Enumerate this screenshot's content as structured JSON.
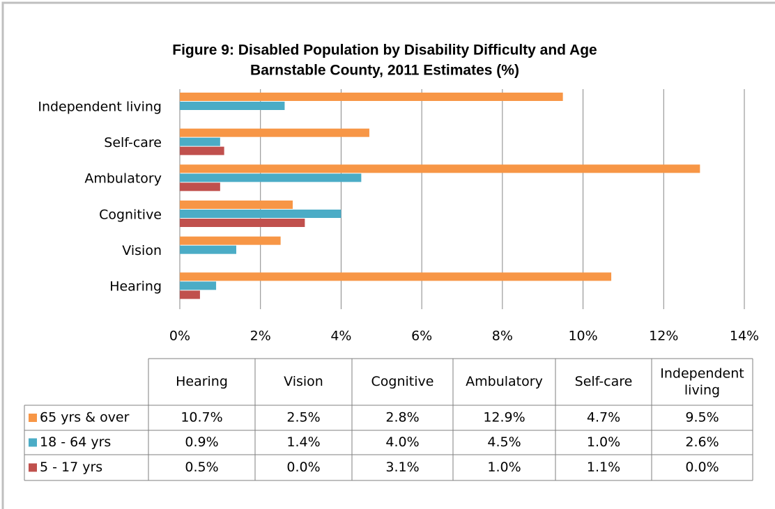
{
  "chart_data": {
    "type": "bar",
    "orientation": "horizontal",
    "title": "Figure 9: Disabled Population by Disability Difficulty and Age",
    "subtitle": "Barnstable County, 2011 Estimates (%)",
    "categories": [
      "Hearing",
      "Vision",
      "Cognitive",
      "Ambulatory",
      "Self-care",
      "Independent living"
    ],
    "series": [
      {
        "name": "65 yrs & over",
        "color": "#f79646",
        "values": [
          10.7,
          2.5,
          2.8,
          12.9,
          4.7,
          9.5
        ],
        "value_labels": [
          "10.7%",
          "2.5%",
          "2.8%",
          "12.9%",
          "4.7%",
          "9.5%"
        ]
      },
      {
        "name": "18 - 64 yrs",
        "color": "#4bacc6",
        "values": [
          0.9,
          1.4,
          4.0,
          4.5,
          1.0,
          2.6
        ],
        "value_labels": [
          "0.9%",
          "1.4%",
          "4.0%",
          "4.5%",
          "1.0%",
          "2.6%"
        ]
      },
      {
        "name": "5 - 17 yrs",
        "color": "#c0504d",
        "values": [
          0.5,
          0.0,
          3.1,
          1.0,
          1.1,
          0.0
        ],
        "value_labels": [
          "0.5%",
          "0.0%",
          "3.1%",
          "1.0%",
          "1.1%",
          "0.0%"
        ]
      }
    ],
    "xlim": [
      0,
      14
    ],
    "xticks": [
      {
        "value": 0,
        "label": "0%"
      },
      {
        "value": 2,
        "label": "2%"
      },
      {
        "value": 4,
        "label": "4%"
      },
      {
        "value": 6,
        "label": "6%"
      },
      {
        "value": 8,
        "label": "8%"
      },
      {
        "value": 10,
        "label": "10%"
      },
      {
        "value": 12,
        "label": "12%"
      },
      {
        "value": 14,
        "label": "14%"
      }
    ],
    "grid": true,
    "data_table": true
  }
}
